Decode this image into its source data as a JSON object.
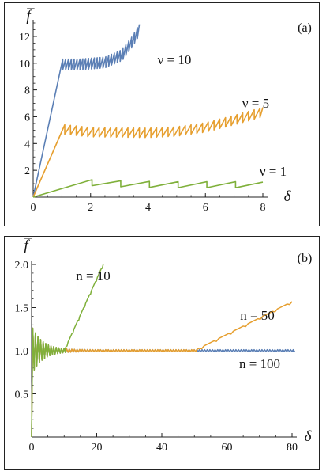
{
  "chart_data": [
    {
      "type": "line",
      "panel_tag": "(a)",
      "ylabel": "f̅",
      "xlabel": "δ",
      "xlim": [
        0,
        8
      ],
      "ylim": [
        0,
        13
      ],
      "xticks": [
        "0",
        "2",
        "4",
        "6",
        "8"
      ],
      "yticks": [
        "2",
        "4",
        "6",
        "8",
        "10",
        "12"
      ],
      "grid": false,
      "series": [
        {
          "name": "ν = 10",
          "color": "#5b7fb5",
          "shape": {
            "rise_to": [
              1.03,
              10.3
            ],
            "saw_period": 0.1,
            "saw_drop": 0.8,
            "segments": [
              [
                1.03,
                10.3
              ],
              [
                1.6,
                10.3
              ],
              [
                2.5,
                10.45
              ],
              [
                3.1,
                11.0
              ],
              [
                3.45,
                12.0
              ],
              [
                3.7,
                12.9
              ]
            ]
          }
        },
        {
          "name": "ν = 5",
          "color": "#e69f2f",
          "shape": {
            "rise_to": [
              1.1,
              5.4
            ],
            "saw_period": 0.2,
            "saw_drop": 0.7,
            "segments": [
              [
                1.1,
                5.4
              ],
              [
                2.0,
                5.2
              ],
              [
                4.0,
                5.15
              ],
              [
                5.0,
                5.25
              ],
              [
                6.0,
                5.55
              ],
              [
                7.0,
                6.1
              ],
              [
                8.0,
                6.7
              ]
            ]
          }
        },
        {
          "name": "ν = 1",
          "color": "#7fb03a",
          "shape": {
            "rise_to": [
              2.05,
              1.3
            ],
            "saw_period": 1.0,
            "saw_drop": 0.45,
            "segments": [
              [
                2.05,
                1.3
              ],
              [
                3.0,
                1.22
              ],
              [
                4.0,
                1.17
              ],
              [
                5.0,
                1.15
              ],
              [
                6.0,
                1.15
              ],
              [
                7.0,
                1.15
              ],
              [
                8.0,
                1.12
              ]
            ]
          }
        }
      ]
    },
    {
      "type": "line",
      "panel_tag": "(b)",
      "ylabel": "f̅",
      "xlabel": "δ",
      "xlim": [
        0,
        80
      ],
      "ylim": [
        0,
        2.0
      ],
      "xticks": [
        "0",
        "20",
        "40",
        "60",
        "80"
      ],
      "yticks": [
        "0.5",
        "1.0",
        "1.5",
        "2.0"
      ],
      "grid": false,
      "series": [
        {
          "name": "n = 100",
          "color": "#5b7fb5",
          "shape": {
            "break_at": 100,
            "end_x": 80,
            "tail_y": 1.0
          }
        },
        {
          "name": "n = 50",
          "color": "#e69f2f",
          "shape": {
            "break_at": 50,
            "end_x": 80,
            "tail_end": [
              80,
              1.57
            ]
          }
        },
        {
          "name": "n = 10",
          "color": "#7fb03a",
          "shape": {
            "break_at": 10,
            "end_x": 22,
            "tail_end": [
              22,
              2.0
            ]
          }
        }
      ]
    }
  ]
}
